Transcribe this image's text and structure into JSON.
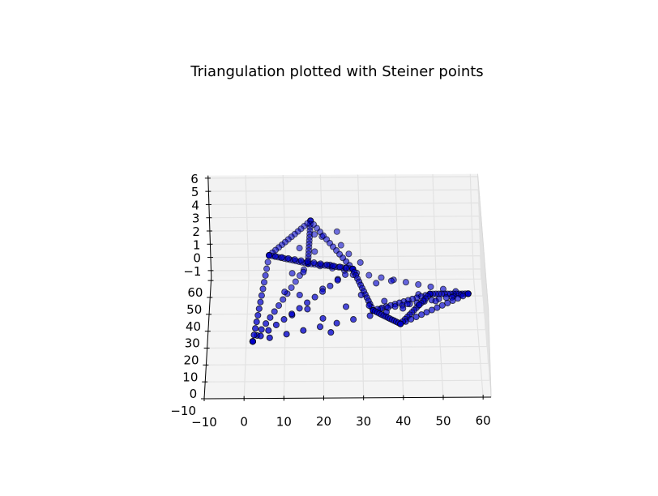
{
  "chart_data": {
    "type": "scatter",
    "projection": "3d",
    "title": "Triangulation plotted with Steiner points",
    "xlabel": "",
    "ylabel": "",
    "zlabel": "",
    "grid": true,
    "marker_color": "#0000cc",
    "marker_edge_color": "#000000",
    "pane_colors": {
      "back": "#f2f2f2",
      "side": "#ebebeb",
      "floor": "#f4f4f4"
    },
    "xlim": [
      -10,
      62
    ],
    "ylim": [
      -10,
      62
    ],
    "zlim": [
      -1.5,
      6.2
    ],
    "x_ticks": [
      -10,
      0,
      10,
      20,
      30,
      40,
      50,
      60
    ],
    "x_tick_labels": [
      "−10",
      "0",
      "10",
      "20",
      "30",
      "40",
      "50",
      "60"
    ],
    "y_ticks": [
      -10,
      0,
      10,
      20,
      30,
      40,
      50,
      60
    ],
    "y_tick_labels": [
      "−10",
      "0",
      "10",
      "20",
      "30",
      "40",
      "50",
      "60"
    ],
    "z_ticks": [
      -1,
      0,
      1,
      2,
      3,
      4,
      5,
      6
    ],
    "z_tick_labels": [
      "−1",
      "0",
      "1",
      "2",
      "3",
      "4",
      "5",
      "6"
    ],
    "mesh_vertices": [
      [
        2,
        13,
        0
      ],
      [
        16,
        58,
        0
      ],
      [
        58,
        40,
        0
      ],
      [
        6,
        48,
        2
      ],
      [
        17,
        60,
        3
      ],
      [
        28,
        40,
        2
      ],
      [
        33,
        38,
        -1
      ],
      [
        48,
        40,
        0
      ],
      [
        40,
        30,
        -1
      ]
    ],
    "mesh_edges": [
      [
        0,
        1
      ],
      [
        1,
        2
      ],
      [
        0,
        2
      ],
      [
        0,
        3
      ],
      [
        3,
        4
      ],
      [
        1,
        3
      ],
      [
        1,
        4
      ],
      [
        4,
        5
      ],
      [
        3,
        5
      ],
      [
        1,
        5
      ],
      [
        5,
        0
      ],
      [
        2,
        6
      ],
      [
        6,
        7
      ],
      [
        2,
        7
      ],
      [
        6,
        8
      ],
      [
        7,
        8
      ],
      [
        8,
        2
      ],
      [
        5,
        6
      ]
    ],
    "points_per_edge": 13,
    "face_steiner_points": [
      [
        12,
        45,
        1
      ],
      [
        15,
        42,
        1.5
      ],
      [
        18,
        50,
        2
      ],
      [
        22,
        46,
        1.5
      ],
      [
        25,
        52,
        2.2
      ],
      [
        10,
        38,
        0.5
      ],
      [
        14,
        34,
        0.8
      ],
      [
        20,
        36,
        1
      ],
      [
        24,
        40,
        1.2
      ],
      [
        28,
        44,
        1
      ],
      [
        30,
        36,
        0.5
      ],
      [
        34,
        42,
        0.6
      ],
      [
        38,
        44,
        0.5
      ],
      [
        16,
        28,
        0.5
      ],
      [
        20,
        24,
        0.3
      ],
      [
        26,
        30,
        0.4
      ],
      [
        32,
        32,
        0.2
      ],
      [
        36,
        36,
        0
      ],
      [
        12,
        26,
        0.3
      ],
      [
        22,
        18,
        0
      ],
      [
        42,
        38,
        -0.5
      ],
      [
        45,
        42,
        -0.3
      ],
      [
        18,
        56,
        2.5
      ],
      [
        20,
        54,
        2.6
      ],
      [
        24,
        56,
        2.7
      ],
      [
        14,
        52,
        2
      ],
      [
        27,
        50,
        1.8
      ],
      [
        30,
        48,
        1.4
      ]
    ]
  }
}
